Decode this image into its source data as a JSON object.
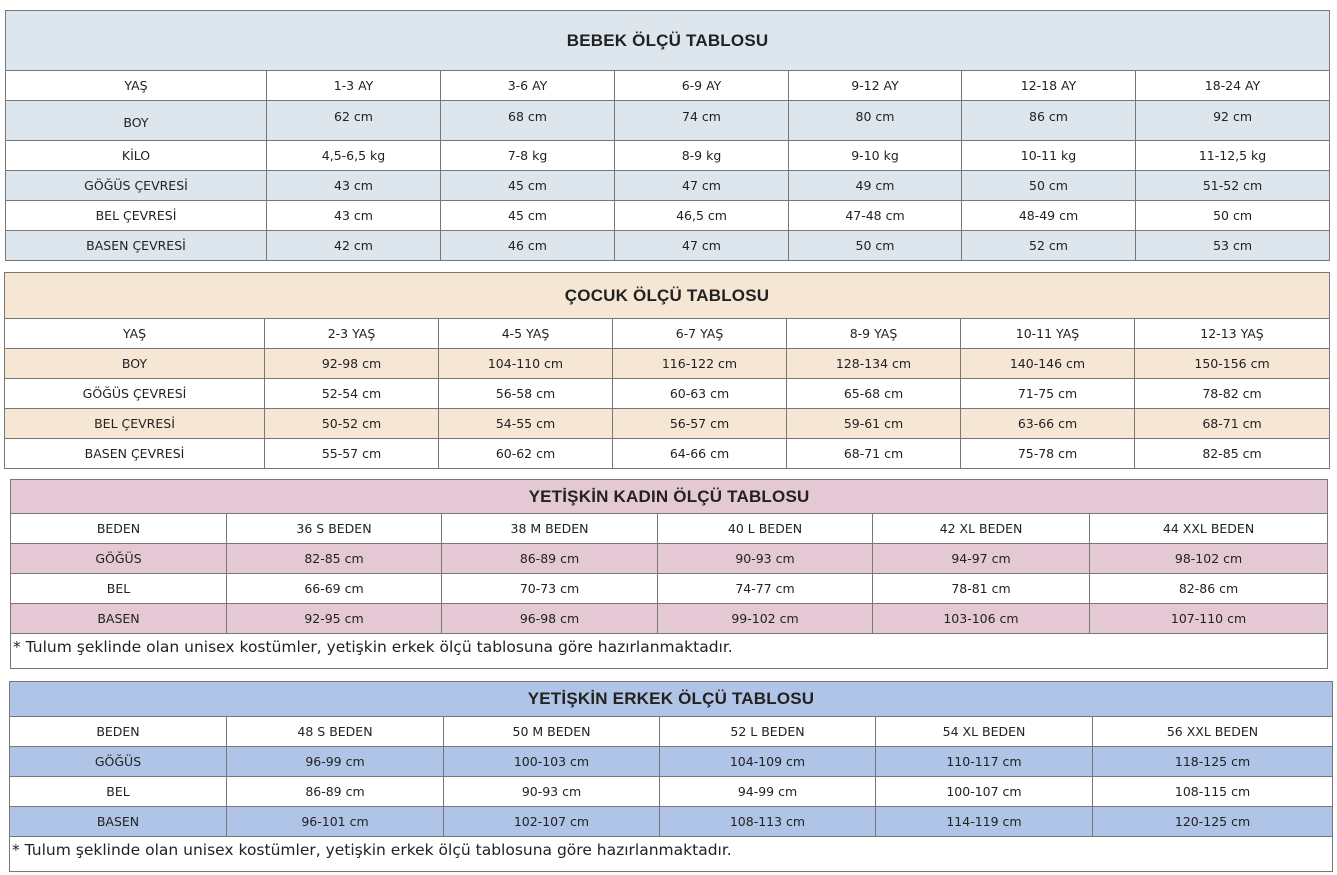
{
  "tables": [
    {
      "id": "bebek",
      "title": "BEBEK ÖLÇÜ TABLOSU",
      "color": "#dde6ed",
      "rows": [
        [
          "YAŞ",
          "1-3 AY",
          "3-6 AY",
          "6-9 AY",
          "9-12 AY",
          "12-18 AY",
          "18-24 AY"
        ],
        [
          "BOY",
          "62 cm",
          "68 cm",
          "74 cm",
          "80 cm",
          "86 cm",
          "92 cm"
        ],
        [
          "KİLO",
          "4,5-6,5 kg",
          "7-8 kg",
          "8-9 kg",
          "9-10 kg",
          "10-11 kg",
          "11-12,5 kg"
        ],
        [
          "GÖĞÜS ÇEVRESİ",
          "43 cm",
          "45 cm",
          "47 cm",
          "49 cm",
          "50 cm",
          "51-52 cm"
        ],
        [
          "BEL ÇEVRESİ",
          "43 cm",
          "45 cm",
          "46,5 cm",
          "47-48 cm",
          "48-49 cm",
          "50 cm"
        ],
        [
          "BASEN ÇEVRESİ",
          "42 cm",
          "46 cm",
          "47 cm",
          "50 cm",
          "52 cm",
          "53 cm"
        ]
      ]
    },
    {
      "id": "cocuk",
      "title": "ÇOCUK ÖLÇÜ TABLOSU",
      "color": "#f6e7d4",
      "rows": [
        [
          "YAŞ",
          "2-3 YAŞ",
          "4-5 YAŞ",
          "6-7 YAŞ",
          "8-9 YAŞ",
          "10-11 YAŞ",
          "12-13 YAŞ"
        ],
        [
          "BOY",
          "92-98 cm",
          "104-110 cm",
          "116-122 cm",
          "128-134 cm",
          "140-146 cm",
          "150-156 cm"
        ],
        [
          "GÖĞÜS ÇEVRESİ",
          "52-54 cm",
          "56-58 cm",
          "60-63 cm",
          "65-68 cm",
          "71-75 cm",
          "78-82 cm"
        ],
        [
          "BEL ÇEVRESİ",
          "50-52 cm",
          "54-55 cm",
          "56-57 cm",
          "59-61 cm",
          "63-66 cm",
          "68-71 cm"
        ],
        [
          "BASEN ÇEVRESİ",
          "55-57 cm",
          "60-62 cm",
          "64-66 cm",
          "68-71 cm",
          "75-78 cm",
          "82-85 cm"
        ]
      ]
    },
    {
      "id": "kadin",
      "title": "YETİŞKİN KADIN ÖLÇÜ TABLOSU",
      "color": "#e4c9d4",
      "rows": [
        [
          "BEDEN",
          "36 S BEDEN",
          "38 M BEDEN",
          "40 L BEDEN",
          "42 XL BEDEN",
          "44 XXL BEDEN"
        ],
        [
          "GÖĞÜS",
          "82-85 cm",
          "86-89 cm",
          "90-93 cm",
          "94-97 cm",
          "98-102 cm"
        ],
        [
          "BEL",
          "66-69 cm",
          "70-73 cm",
          "74-77 cm",
          "78-81 cm",
          "82-86 cm"
        ],
        [
          "BASEN",
          "92-95 cm",
          "96-98 cm",
          "99-102 cm",
          "103-106 cm",
          "107-110 cm"
        ]
      ],
      "note": "* Tulum şeklinde olan unisex kostümler, yetişkin erkek ölçü tablosuna göre hazırlanmaktadır."
    },
    {
      "id": "erkek",
      "title": "YETİŞKİN ERKEK ÖLÇÜ TABLOSU",
      "color": "#b0c4e7",
      "rows": [
        [
          "BEDEN",
          "48 S BEDEN",
          "50 M BEDEN",
          "52 L BEDEN",
          "54 XL BEDEN",
          "56 XXL BEDEN"
        ],
        [
          "GÖĞÜS",
          "96-99 cm",
          "100-103 cm",
          "104-109 cm",
          "110-117 cm",
          "118-125 cm"
        ],
        [
          "BEL",
          "86-89 cm",
          "90-93 cm",
          "94-99 cm",
          "100-107 cm",
          "108-115 cm"
        ],
        [
          "BASEN",
          "96-101 cm",
          "102-107 cm",
          "108-113 cm",
          "114-119 cm",
          "120-125 cm"
        ]
      ],
      "note": "* Tulum şeklinde olan unisex kostümler, yetişkin erkek ölçü  tablosuna göre hazırlanmaktadır."
    }
  ]
}
